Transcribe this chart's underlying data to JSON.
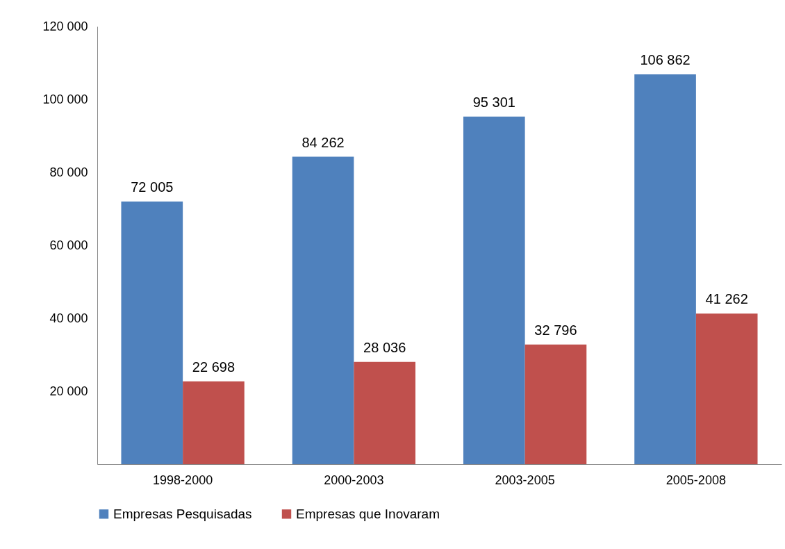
{
  "chart_data": {
    "type": "bar",
    "categories": [
      "1998-2000",
      "2000-2003",
      "2003-2005",
      "2005-2008"
    ],
    "series": [
      {
        "name": "Empresas Pesquisadas",
        "color": "#4f81bd",
        "values": [
          72005,
          84262,
          95301,
          106862
        ],
        "value_labels": [
          "72 005",
          "84 262",
          "95 301",
          "106 862"
        ]
      },
      {
        "name": "Empresas que Inovaram",
        "color": "#c0504d",
        "values": [
          22698,
          28036,
          32796,
          41262
        ],
        "value_labels": [
          "22 698",
          "28 036",
          "32 796",
          "41 262"
        ]
      }
    ],
    "ylim": [
      0,
      120000
    ],
    "yticks": [
      {
        "value": 20000,
        "label": "20 000"
      },
      {
        "value": 40000,
        "label": "40 000"
      },
      {
        "value": 60000,
        "label": "60 000"
      },
      {
        "value": 80000,
        "label": "80 000"
      },
      {
        "value": 100000,
        "label": "100 000"
      },
      {
        "value": 120000,
        "label": "120 000"
      }
    ],
    "grid": false,
    "legend": "bottom"
  }
}
